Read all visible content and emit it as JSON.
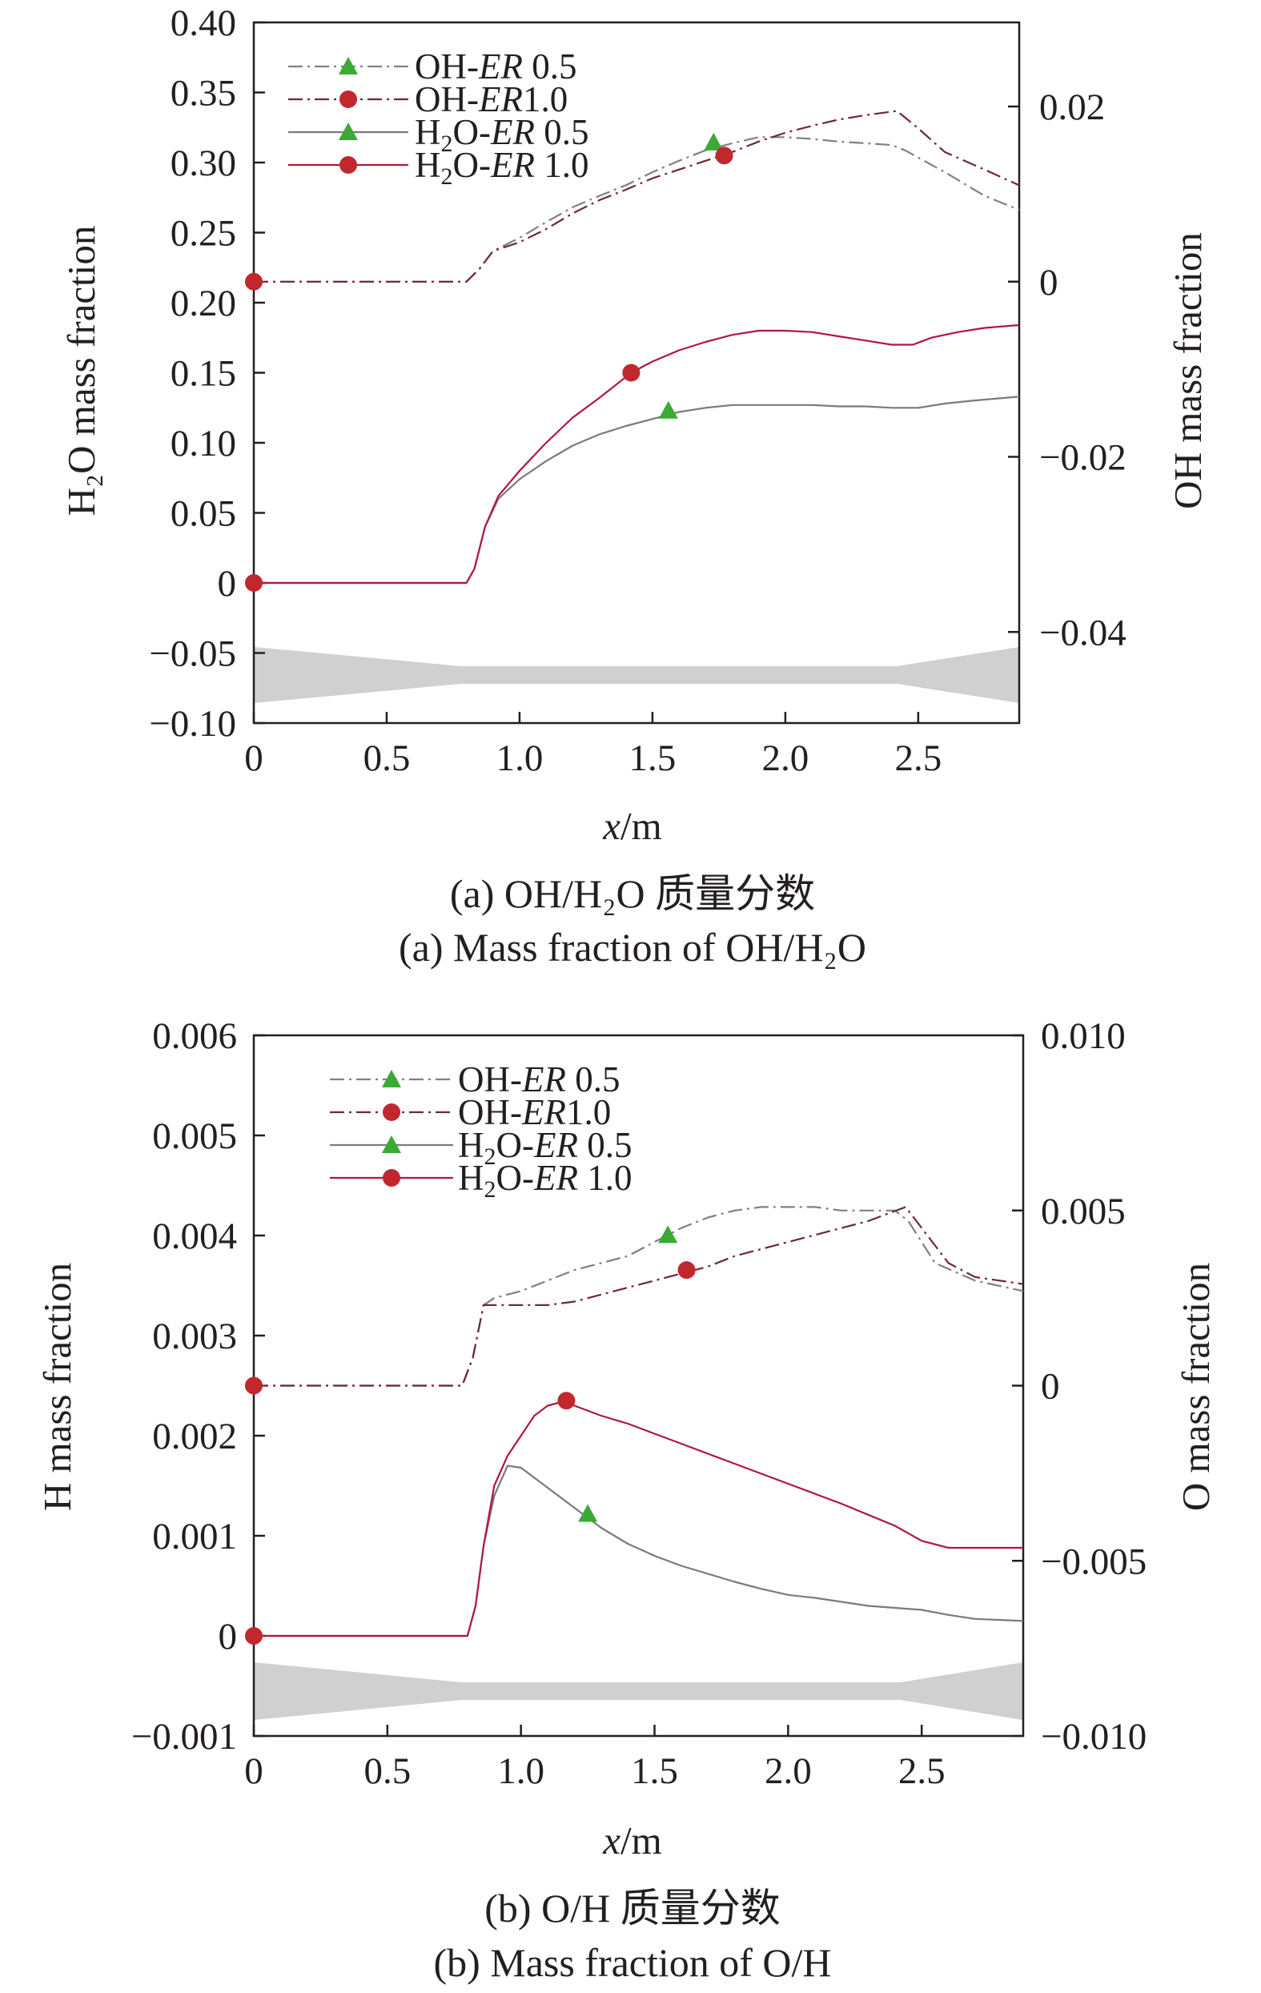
{
  "colors": {
    "er05": "#7a7a7a",
    "er10": "#b0173f",
    "triangle": "#3aa935",
    "circle": "#c1272d",
    "nozzle": "#d0d0d0"
  },
  "chart_data": [
    {
      "type": "line",
      "xlabel": "x/m",
      "xlim": [
        0,
        2.88
      ],
      "xticks": [
        "0",
        "0.5",
        "1.0",
        "1.5",
        "2.0",
        "2.5"
      ],
      "y_left": {
        "label": "H2O mass fraction",
        "ylim": [
          -0.1,
          0.4
        ],
        "ticks": [
          "0.40",
          "0.35",
          "0.30",
          "0.25",
          "0.20",
          "0.15",
          "0.10",
          "0.05",
          "0",
          "−0.05",
          "−0.10"
        ]
      },
      "y_right": {
        "label": "OH mass fraction",
        "ylim": [
          -0.0504,
          0.0296
        ],
        "ticks": [
          "0.02",
          "0",
          "−0.02",
          "−0.04"
        ]
      },
      "legend": [
        "OH-ER 0.5",
        "OH-ER1.0",
        "H2O-ER 0.5",
        "H2O-ER 1.0"
      ],
      "series": [
        {
          "name": "OH-ER 0.5",
          "axis": "right",
          "style": "dashdot",
          "marker": "triangle",
          "marker_at": [
            1.73,
            0.0159
          ],
          "x": [
            0,
            0.8,
            0.85,
            0.9,
            1.0,
            1.1,
            1.2,
            1.3,
            1.4,
            1.5,
            1.6,
            1.7,
            1.8,
            1.9,
            2.0,
            2.1,
            2.2,
            2.3,
            2.4,
            2.45,
            2.6,
            2.75,
            2.88
          ],
          "y": [
            0,
            0,
            0.0015,
            0.0035,
            0.005,
            0.0068,
            0.0085,
            0.0098,
            0.011,
            0.0125,
            0.0138,
            0.015,
            0.0158,
            0.0165,
            0.0165,
            0.0163,
            0.016,
            0.0158,
            0.0156,
            0.015,
            0.0125,
            0.0098,
            0.0082
          ]
        },
        {
          "name": "OH-ER1.0",
          "axis": "right",
          "style": "dashdot",
          "marker": "circle",
          "marker_at": [
            1.77,
            0.0144
          ],
          "x": [
            0,
            0.8,
            0.85,
            0.9,
            1.0,
            1.1,
            1.2,
            1.3,
            1.4,
            1.5,
            1.6,
            1.7,
            1.8,
            1.9,
            2.0,
            2.1,
            2.2,
            2.3,
            2.42,
            2.5,
            2.6,
            2.75,
            2.88
          ],
          "y": [
            0,
            0,
            0.0015,
            0.0035,
            0.0045,
            0.006,
            0.0078,
            0.0093,
            0.0105,
            0.0118,
            0.0128,
            0.0138,
            0.0148,
            0.016,
            0.017,
            0.0178,
            0.0185,
            0.019,
            0.0195,
            0.0175,
            0.0148,
            0.0128,
            0.011
          ]
        },
        {
          "name": "H2O-ER 0.5",
          "axis": "left",
          "style": "solid",
          "marker": "triangle",
          "marker_at": [
            1.56,
            0.123
          ],
          "x": [
            0,
            0.8,
            0.83,
            0.87,
            0.92,
            1.0,
            1.1,
            1.2,
            1.3,
            1.4,
            1.5,
            1.6,
            1.7,
            1.8,
            1.9,
            2.0,
            2.1,
            2.2,
            2.3,
            2.4,
            2.5,
            2.6,
            2.7,
            2.88
          ],
          "y": [
            0,
            0,
            0.01,
            0.04,
            0.06,
            0.074,
            0.087,
            0.098,
            0.106,
            0.112,
            0.117,
            0.122,
            0.125,
            0.127,
            0.127,
            0.127,
            0.127,
            0.126,
            0.126,
            0.125,
            0.125,
            0.128,
            0.13,
            0.133
          ]
        },
        {
          "name": "H2O-ER 1.0",
          "axis": "left",
          "style": "solid",
          "marker": "circle",
          "marker_at": [
            1.42,
            0.15
          ],
          "x": [
            0,
            0.8,
            0.83,
            0.87,
            0.92,
            1.0,
            1.1,
            1.2,
            1.3,
            1.42,
            1.5,
            1.6,
            1.7,
            1.8,
            1.9,
            2.0,
            2.1,
            2.2,
            2.3,
            2.4,
            2.48,
            2.55,
            2.65,
            2.75,
            2.88
          ],
          "y": [
            0,
            0,
            0.01,
            0.04,
            0.062,
            0.08,
            0.1,
            0.118,
            0.132,
            0.15,
            0.158,
            0.166,
            0.172,
            0.177,
            0.18,
            0.18,
            0.179,
            0.176,
            0.173,
            0.17,
            0.17,
            0.175,
            0.179,
            0.182,
            0.184
          ]
        }
      ]
    },
    {
      "type": "line",
      "xlabel": "x/m",
      "xlim": [
        0,
        2.88
      ],
      "xticks": [
        "0",
        "0.5",
        "1.0",
        "1.5",
        "2.0",
        "2.5"
      ],
      "y_left": {
        "label": "H mass fraction",
        "ylim": [
          -0.001,
          0.006
        ],
        "ticks": [
          "0.006",
          "0.005",
          "0.004",
          "0.003",
          "0.002",
          "0.001",
          "0",
          "−0.001"
        ]
      },
      "y_right": {
        "label": "O mass fraction",
        "ylim": [
          -0.01,
          0.01
        ],
        "ticks": [
          "0.010",
          "0.005",
          "0",
          "−0.005",
          "−0.010"
        ]
      },
      "legend": [
        "OH-ER 0.5",
        "OH-ER1.0",
        "H2O-ER 0.5",
        "H2O-ER 1.0"
      ],
      "series": [
        {
          "name": "OH-ER 0.5",
          "axis": "right",
          "style": "dashdot",
          "marker": "triangle",
          "marker_at": [
            1.55,
            0.0043
          ],
          "x": [
            0,
            0.78,
            0.82,
            0.86,
            0.9,
            1.0,
            1.1,
            1.2,
            1.3,
            1.4,
            1.5,
            1.6,
            1.7,
            1.8,
            1.9,
            2.0,
            2.1,
            2.2,
            2.3,
            2.4,
            2.45,
            2.55,
            2.7,
            2.88
          ],
          "y": [
            0,
            0,
            0.0008,
            0.0023,
            0.0025,
            0.0027,
            0.003,
            0.0033,
            0.0035,
            0.0037,
            0.0041,
            0.0045,
            0.0048,
            0.005,
            0.0051,
            0.0051,
            0.0051,
            0.005,
            0.005,
            0.005,
            0.0047,
            0.0035,
            0.003,
            0.0027
          ]
        },
        {
          "name": "OH-ER1.0",
          "axis": "right",
          "style": "dashdot",
          "marker": "circle",
          "marker_at": [
            1.62,
            0.0033
          ],
          "x": [
            0,
            0.78,
            0.82,
            0.86,
            0.9,
            1.0,
            1.1,
            1.2,
            1.3,
            1.4,
            1.5,
            1.6,
            1.7,
            1.8,
            1.9,
            2.0,
            2.1,
            2.2,
            2.3,
            2.44,
            2.5,
            2.6,
            2.7,
            2.88
          ],
          "y": [
            0,
            0,
            0.0008,
            0.0023,
            0.0023,
            0.0023,
            0.0023,
            0.0024,
            0.0026,
            0.0028,
            0.003,
            0.0032,
            0.0034,
            0.0037,
            0.0039,
            0.0041,
            0.0043,
            0.0045,
            0.0047,
            0.0051,
            0.0045,
            0.0035,
            0.0031,
            0.0029
          ]
        },
        {
          "name": "H2O-ER 0.5",
          "axis": "left",
          "style": "solid",
          "marker": "triangle",
          "marker_at": [
            1.25,
            0.00122
          ],
          "x": [
            0,
            0.8,
            0.83,
            0.86,
            0.9,
            0.95,
            1.0,
            1.05,
            1.1,
            1.2,
            1.3,
            1.4,
            1.5,
            1.6,
            1.7,
            1.8,
            1.9,
            2.0,
            2.1,
            2.2,
            2.3,
            2.4,
            2.5,
            2.6,
            2.7,
            2.88
          ],
          "y": [
            0,
            0,
            0.0003,
            0.0009,
            0.0014,
            0.0017,
            0.00168,
            0.00158,
            0.00148,
            0.00128,
            0.00108,
            0.00092,
            0.0008,
            0.0007,
            0.00062,
            0.00054,
            0.00047,
            0.00041,
            0.00038,
            0.00034,
            0.0003,
            0.00028,
            0.00026,
            0.00021,
            0.00017,
            0.00015
          ]
        },
        {
          "name": "H2O-ER 1.0",
          "axis": "left",
          "style": "solid",
          "marker": "circle",
          "marker_at": [
            1.17,
            0.00235
          ],
          "x": [
            0,
            0.8,
            0.83,
            0.86,
            0.9,
            0.95,
            1.0,
            1.05,
            1.1,
            1.17,
            1.2,
            1.3,
            1.4,
            1.5,
            1.6,
            1.7,
            1.8,
            1.9,
            2.0,
            2.1,
            2.2,
            2.3,
            2.4,
            2.5,
            2.6,
            2.7,
            2.88
          ],
          "y": [
            0,
            0,
            0.0003,
            0.0009,
            0.0015,
            0.0018,
            0.002,
            0.0022,
            0.0023,
            0.00235,
            0.0023,
            0.0022,
            0.00212,
            0.00202,
            0.00192,
            0.00182,
            0.00172,
            0.00162,
            0.00152,
            0.00142,
            0.00132,
            0.00121,
            0.0011,
            0.00095,
            0.00088,
            0.00088,
            0.00088
          ]
        }
      ]
    }
  ],
  "panels": {
    "a": {
      "ylabel_left": "H₂O mass fraction",
      "ylabel_right": "OH mass fraction",
      "xlabel_var": "x",
      "xlabel_unit": "/m",
      "caption_zh": "(a) OH/H₂O 质量分数",
      "caption_en": "(a) Mass fraction of OH/H₂O"
    },
    "b": {
      "ylabel_left": "H mass fraction",
      "ylabel_right": "O mass fraction",
      "xlabel_var": "x",
      "xlabel_unit": "/m",
      "caption_zh": "(b) O/H 质量分数",
      "caption_en": "(b) Mass fraction of O/H"
    }
  }
}
